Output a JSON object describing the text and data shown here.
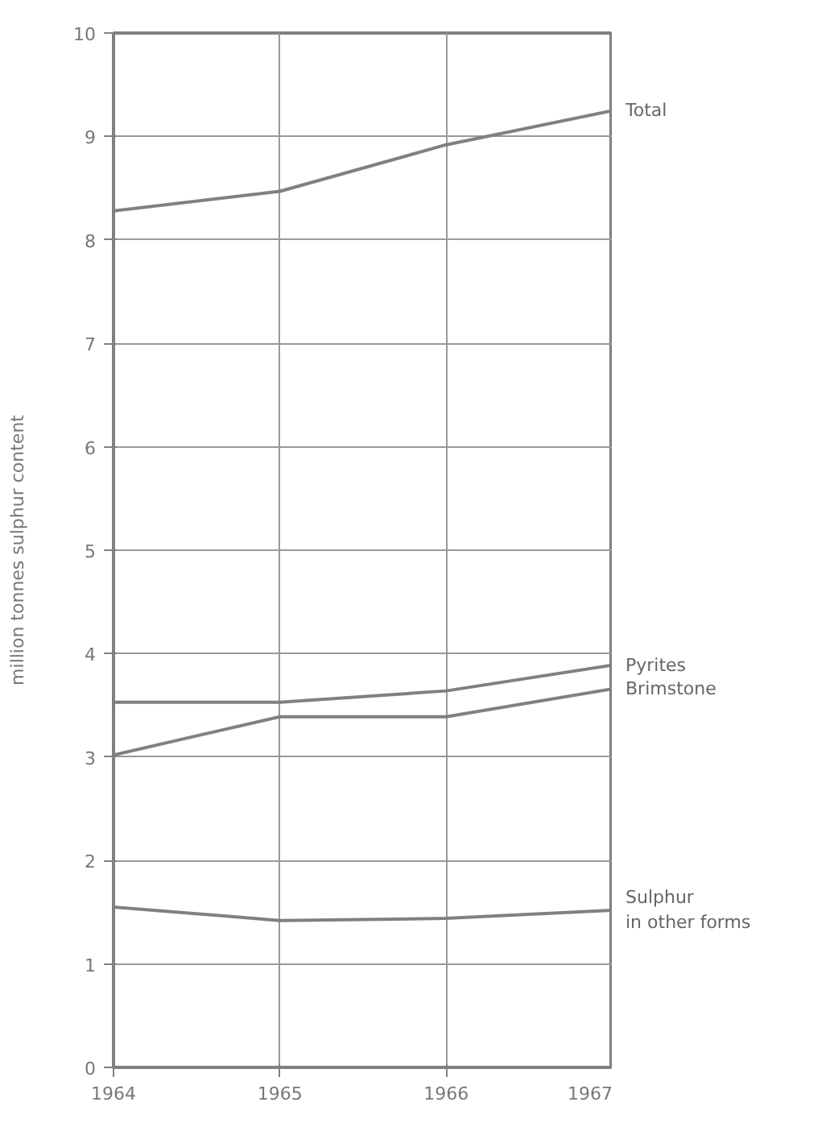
{
  "chart_data": {
    "type": "line",
    "ylabel": "million tonnes sulphur content",
    "x": [
      1964,
      1965,
      1966,
      1967
    ],
    "xlim": [
      1964,
      1967
    ],
    "xticks": [
      1964,
      1965,
      1966,
      1967
    ],
    "ylim": [
      0,
      10
    ],
    "yticks": [
      0,
      1,
      2,
      3,
      4,
      5,
      6,
      7,
      8,
      9,
      10
    ],
    "grid": true,
    "marker": "none",
    "line_style": "solid",
    "series": [
      {
        "name": "Total",
        "color": "#808080",
        "values": [
          8.28,
          8.47,
          8.92,
          9.25
        ]
      },
      {
        "name": "Pyrites",
        "color": "#808080",
        "values": [
          3.53,
          3.53,
          3.64,
          3.89
        ]
      },
      {
        "name": "Brimstone",
        "color": "#808080",
        "values": [
          3.02,
          3.39,
          3.39,
          3.66
        ]
      },
      {
        "name": "Sulphur\nin other forms",
        "color": "#808080",
        "values": [
          1.55,
          1.42,
          1.44,
          1.52
        ]
      }
    ]
  }
}
